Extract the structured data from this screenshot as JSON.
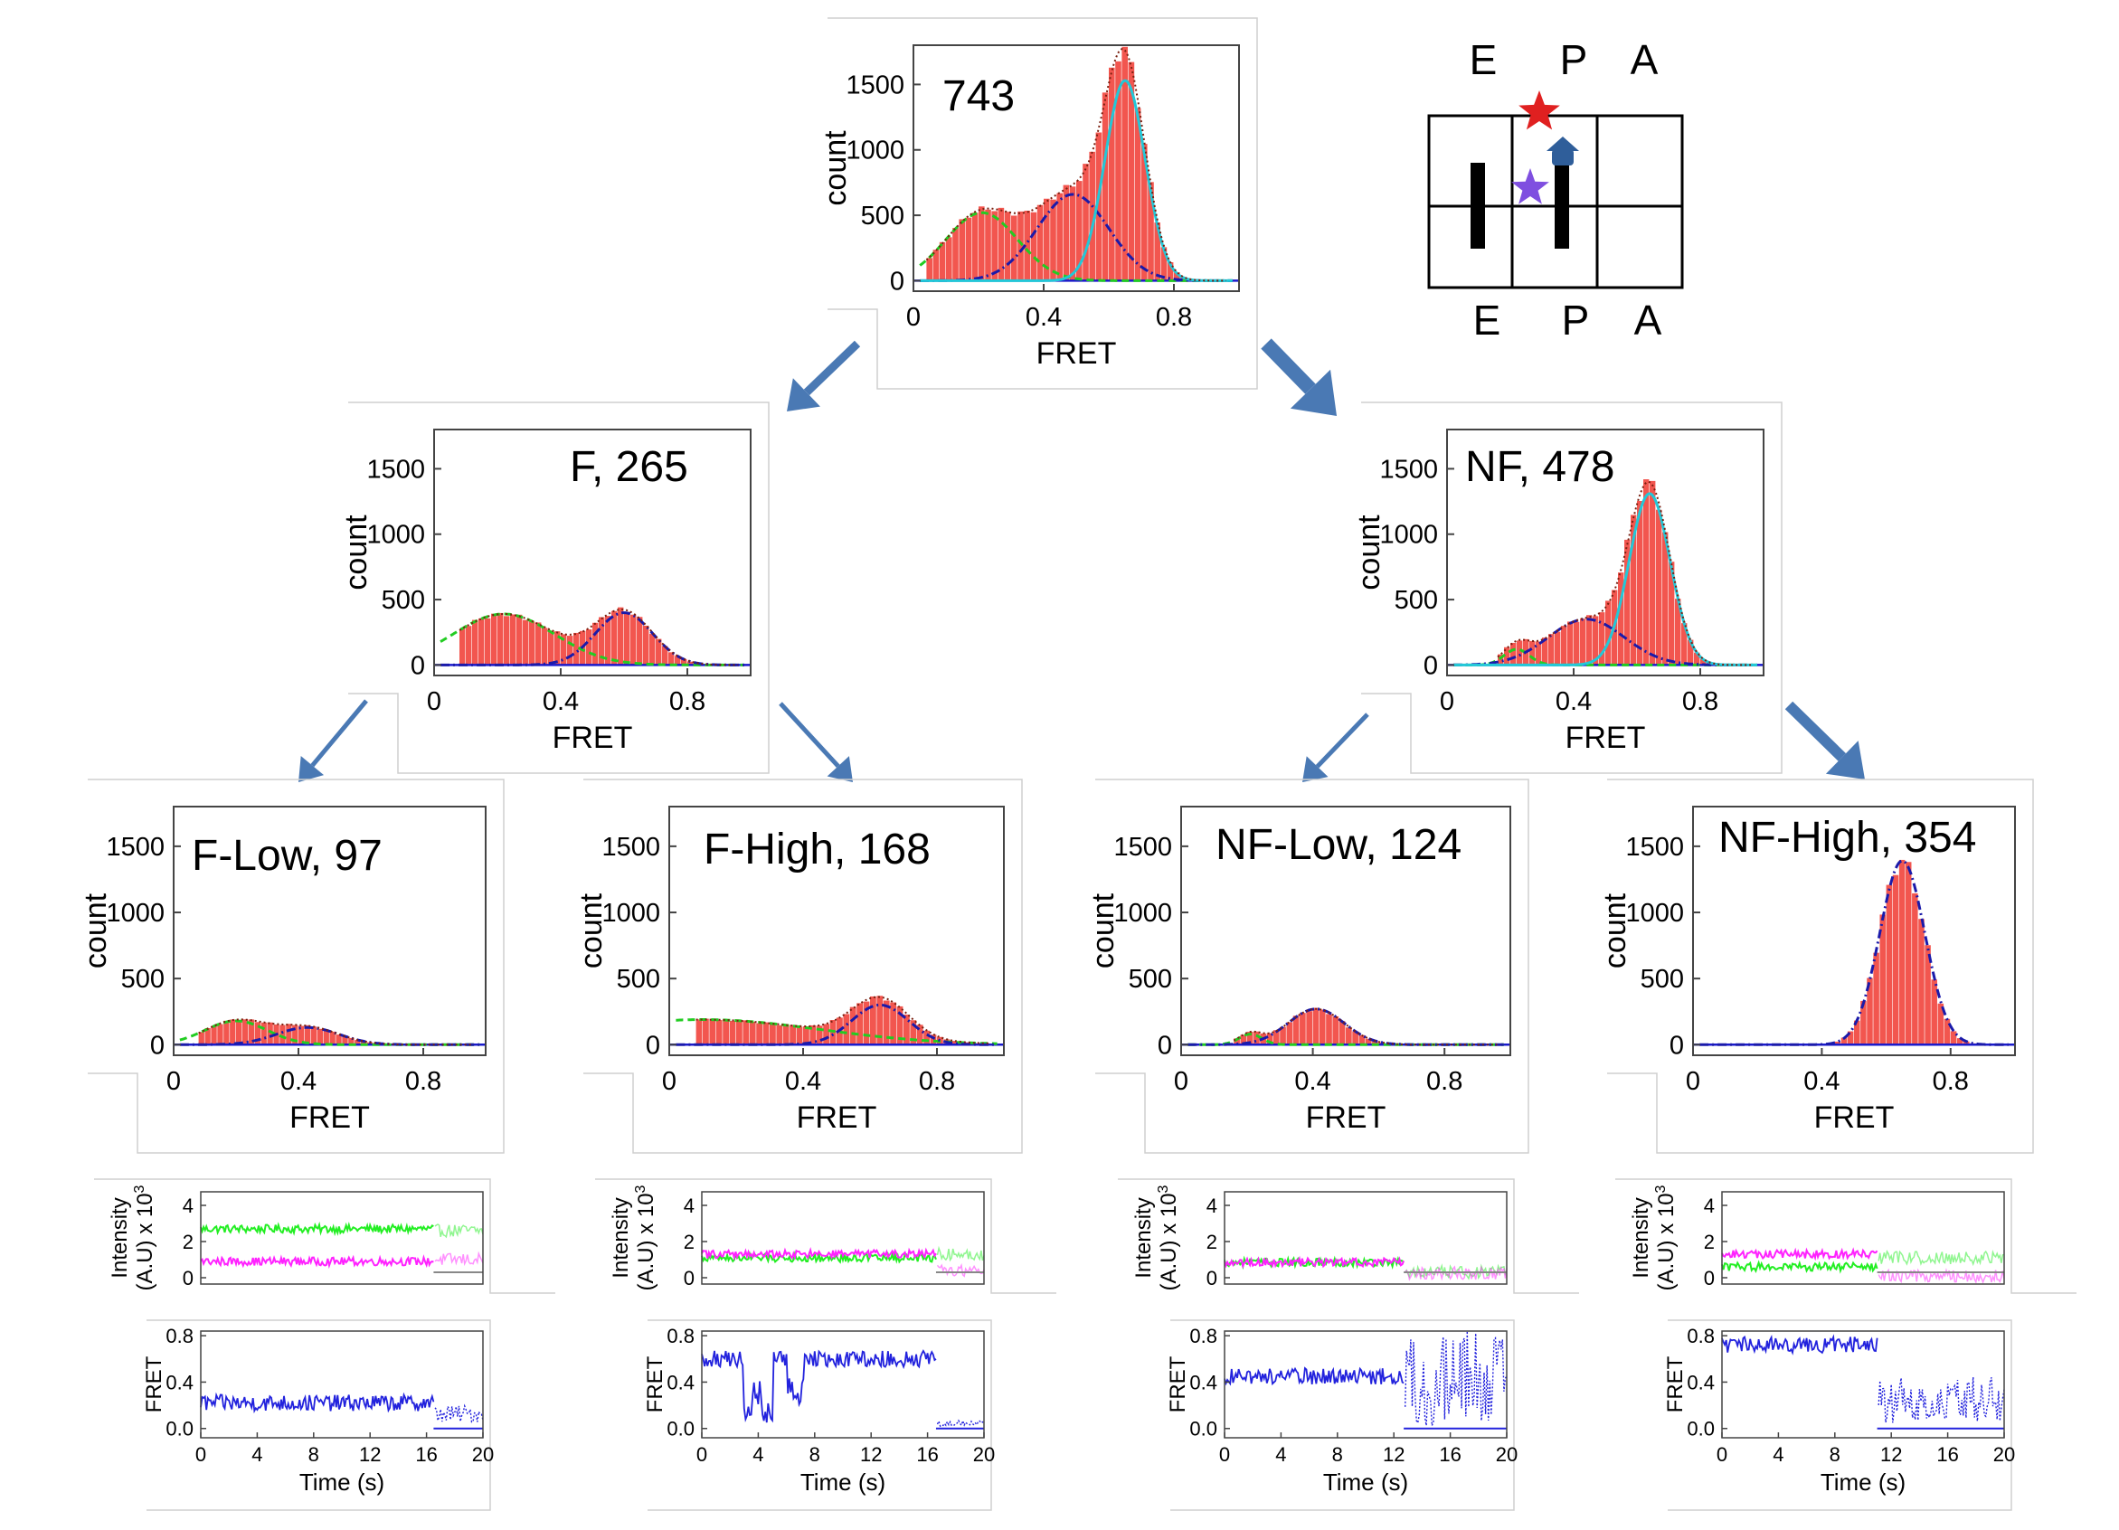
{
  "histogram_axis": {
    "xlabel": "FRET",
    "ylabel": "count",
    "yticks": [
      0,
      500,
      1000,
      1500
    ],
    "xticks": [
      "0",
      "0.4",
      "0.8"
    ],
    "xlim": [
      0,
      1
    ],
    "ylim": [
      -80,
      1800
    ]
  },
  "histograms": [
    {
      "id": "all",
      "label": "743",
      "bins": {
        "start": 0.04,
        "step": 0.02
      },
      "components": [
        {
          "kind": "low",
          "mu": 0.21,
          "sigma": 0.11,
          "amp": 520,
          "color": "#22cc22",
          "dash": "8,5"
        },
        {
          "kind": "mid",
          "mu": 0.49,
          "sigma": 0.11,
          "amp": 660,
          "color": "#1a1aaa",
          "dash": "10,4,2,4"
        },
        {
          "kind": "high",
          "mu": 0.65,
          "sigma": 0.062,
          "amp": 1530,
          "color": "#22c8d8",
          "dash": ""
        }
      ]
    },
    {
      "id": "F",
      "label": "F, 265",
      "bins": {
        "start": 0.08,
        "step": 0.02
      },
      "components": [
        {
          "kind": "low",
          "mu": 0.22,
          "sigma": 0.16,
          "amp": 390,
          "color": "#22cc22",
          "dash": "8,5"
        },
        {
          "kind": "mid",
          "mu": 0.6,
          "sigma": 0.09,
          "amp": 400,
          "color": "#1a1aaa",
          "dash": "10,4,2,4"
        }
      ]
    },
    {
      "id": "NF",
      "label": "NF, 478",
      "bins": {
        "start": 0.16,
        "step": 0.02
      },
      "components": [
        {
          "kind": "low",
          "mu": 0.22,
          "sigma": 0.04,
          "amp": 120,
          "color": "#22cc22",
          "dash": "8,5"
        },
        {
          "kind": "mid",
          "mu": 0.44,
          "sigma": 0.12,
          "amp": 350,
          "color": "#1a1aaa",
          "dash": "10,4,2,4"
        },
        {
          "kind": "high",
          "mu": 0.64,
          "sigma": 0.065,
          "amp": 1310,
          "color": "#22c8d8",
          "dash": ""
        }
      ]
    },
    {
      "id": "F-Low",
      "label": "F-Low, 97",
      "bins": {
        "start": 0.08,
        "step": 0.02
      },
      "components": [
        {
          "kind": "low",
          "mu": 0.2,
          "sigma": 0.1,
          "amp": 180,
          "color": "#22cc22",
          "dash": "8,5"
        },
        {
          "kind": "mid",
          "mu": 0.43,
          "sigma": 0.1,
          "amp": 130,
          "color": "#1a1aaa",
          "dash": "10,4,2,4"
        }
      ]
    },
    {
      "id": "F-High",
      "label": "F-High, 168",
      "bins": {
        "start": 0.08,
        "step": 0.02
      },
      "components": [
        {
          "kind": "low",
          "mu": 0.1,
          "sigma": 0.35,
          "amp": 190,
          "color": "#22cc22",
          "dash": "8,5"
        },
        {
          "kind": "mid",
          "mu": 0.63,
          "sigma": 0.085,
          "amp": 300,
          "color": "#1a1aaa",
          "dash": "10,4,2,4"
        }
      ]
    },
    {
      "id": "NF-Low",
      "label": "NF-Low, 124",
      "bins": {
        "start": 0.16,
        "step": 0.02
      },
      "components": [
        {
          "kind": "low",
          "mu": 0.21,
          "sigma": 0.035,
          "amp": 80,
          "color": "#22cc22",
          "dash": "8,5"
        },
        {
          "kind": "mid",
          "mu": 0.41,
          "sigma": 0.085,
          "amp": 270,
          "color": "#1a1aaa",
          "dash": "10,4,2,4"
        }
      ]
    },
    {
      "id": "NF-High",
      "label": "NF-High, 354",
      "bins": {
        "start": 0.44,
        "step": 0.02
      },
      "components": [
        {
          "kind": "high",
          "mu": 0.65,
          "sigma": 0.07,
          "amp": 1390,
          "color": "#1a1aaa",
          "dash": "10,4,2,4"
        }
      ]
    }
  ],
  "traces_axis": {
    "intensity_ylabel_line1": "Intensity",
    "intensity_ylabel_line2": "(A.U) x 10",
    "intensity_ylabel_exp": "3",
    "intensity_yticks": [
      "0",
      "2",
      "4"
    ],
    "fret_ylabel": "FRET",
    "fret_yticks": [
      "0.0",
      "0.4",
      "0.8"
    ],
    "time_xlabel": "Time (s)",
    "time_xticks": [
      "0",
      "4",
      "8",
      "12",
      "16",
      "20"
    ],
    "time_xlim": [
      0,
      20
    ]
  },
  "traces": [
    {
      "id": "F-Low",
      "bleach_time": 16.5,
      "green": 2.7,
      "magenta": 0.9,
      "post_green": 2.6,
      "post_magenta": 1.0,
      "fret_pattern": "steady",
      "fret_level": 0.22
    },
    {
      "id": "F-High",
      "bleach_time": 16.6,
      "green": 1.1,
      "magenta": 1.3,
      "post_green": 1.3,
      "post_magenta": 0.4,
      "fret_pattern": "switching",
      "fret_level": 0.6
    },
    {
      "id": "NF-Low",
      "bleach_time": 12.7,
      "green": 0.85,
      "magenta": 0.85,
      "post_green": 0.3,
      "post_magenta": 0.25,
      "fret_pattern": "steady",
      "fret_level": 0.45
    },
    {
      "id": "NF-High",
      "bleach_time": 11.0,
      "green": 0.6,
      "magenta": 1.3,
      "post_green": 1.1,
      "post_magenta": 0.1,
      "fret_pattern": "steady",
      "fret_level": 0.72
    }
  ],
  "ribosome_schematic": {
    "top_labels": [
      "E",
      "P",
      "A"
    ],
    "bottom_labels": [
      "E",
      "P",
      "A"
    ],
    "red_star_color": "#e02020",
    "purple_star_color": "#7f4fe0",
    "trna_color": "#000000",
    "ef_color": "#2f5e9a"
  },
  "colors": {
    "bar": "#f2564f",
    "envelope": "#7a2010",
    "baseline": "#1a1acc",
    "arrow": "#4a79b4",
    "trace_green": "#22ee22",
    "trace_magenta": "#ff22ff",
    "trace_blue": "#2222dd",
    "trace_gray": "#888888"
  }
}
